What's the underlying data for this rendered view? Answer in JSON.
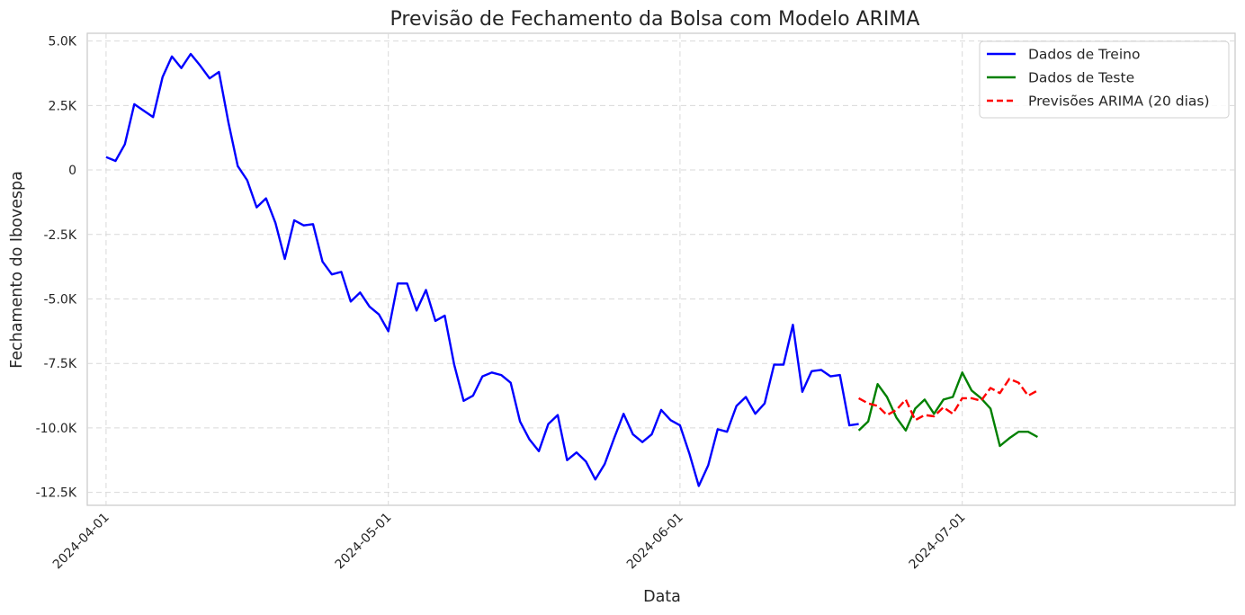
{
  "chart_data": {
    "type": "line",
    "title": "Previsão de Fechamento da Bolsa com Modelo ARIMA",
    "xlabel": "Data",
    "ylabel": "Fechamento do Ibovespa",
    "x_start": "2024-04-01",
    "xlim": [
      "2024-03-30",
      "2024-07-30"
    ],
    "ylim": [
      -13000,
      5300
    ],
    "x_ticks": [
      "2024-04-01",
      "2024-05-01",
      "2024-06-01",
      "2024-07-01"
    ],
    "y_ticks": [
      5000,
      2500,
      0,
      -2500,
      -5000,
      -7500,
      -10000,
      -12500
    ],
    "y_tick_labels": [
      "5.0K",
      "2.5K",
      "0",
      "-2.5K",
      "-5.0K",
      "-7.5K",
      "-10.0K",
      "-12.5K"
    ],
    "grid": true,
    "legend_position": "top-right",
    "series": [
      {
        "name": "Dados de Treino",
        "color": "#0000ff",
        "style": "solid",
        "x": [
          "2024-04-01",
          "2024-04-02",
          "2024-04-03",
          "2024-04-04",
          "2024-04-05",
          "2024-04-06",
          "2024-04-07",
          "2024-04-08",
          "2024-04-09",
          "2024-04-10",
          "2024-04-11",
          "2024-04-12",
          "2024-04-13",
          "2024-04-14",
          "2024-04-15",
          "2024-04-16",
          "2024-04-17",
          "2024-04-18",
          "2024-04-19",
          "2024-04-20",
          "2024-04-21",
          "2024-04-22",
          "2024-04-23",
          "2024-04-24",
          "2024-04-25",
          "2024-04-26",
          "2024-04-27",
          "2024-04-28",
          "2024-04-29",
          "2024-04-30",
          "2024-05-01",
          "2024-05-02",
          "2024-05-03",
          "2024-05-04",
          "2024-05-05",
          "2024-05-06",
          "2024-05-07",
          "2024-05-08",
          "2024-05-09",
          "2024-05-10",
          "2024-05-11",
          "2024-05-12",
          "2024-05-13",
          "2024-05-14",
          "2024-05-15",
          "2024-05-16",
          "2024-05-17",
          "2024-05-18",
          "2024-05-19",
          "2024-05-20",
          "2024-05-21",
          "2024-05-22",
          "2024-05-23",
          "2024-05-24",
          "2024-05-25",
          "2024-05-26",
          "2024-05-27",
          "2024-05-28",
          "2024-05-29",
          "2024-05-30",
          "2024-05-31",
          "2024-06-01",
          "2024-06-02",
          "2024-06-03",
          "2024-06-04",
          "2024-06-05",
          "2024-06-06",
          "2024-06-07",
          "2024-06-08",
          "2024-06-09",
          "2024-06-10",
          "2024-06-11",
          "2024-06-12",
          "2024-06-13",
          "2024-06-14",
          "2024-06-15",
          "2024-06-16",
          "2024-06-17",
          "2024-06-18",
          "2024-06-19",
          "2024-06-20"
        ],
        "values": [
          500,
          350,
          1000,
          2550,
          2300,
          2050,
          3600,
          4400,
          3950,
          4500,
          4050,
          3550,
          3800,
          1850,
          150,
          -400,
          -1450,
          -1100,
          -2050,
          -3450,
          -1950,
          -2150,
          -2100,
          -3550,
          -4050,
          -3950,
          -5100,
          -4750,
          -5300,
          -5600,
          -6250,
          -4400,
          -4400,
          -5450,
          -4650,
          -5850,
          -5650,
          -7550,
          -8950,
          -8750,
          -8000,
          -7850,
          -7950,
          -8250,
          -9750,
          -10450,
          -10900,
          -9850,
          -9500,
          -11250,
          -10950,
          -11300,
          -12000,
          -11400,
          -10400,
          -9450,
          -10250,
          -10550,
          -10250,
          -9300,
          -9700,
          -9900,
          -11000,
          -12250,
          -11450,
          -10050,
          -10150,
          -9150,
          -8800,
          -9450,
          -9050,
          -7550,
          -7550,
          -6000,
          -8600,
          -7800,
          -7750,
          -8000,
          -7950,
          -9900,
          -9850
        ]
      },
      {
        "name": "Dados de Teste",
        "color": "#008000",
        "style": "solid",
        "x": [
          "2024-06-20",
          "2024-06-21",
          "2024-06-22",
          "2024-06-23",
          "2024-06-24",
          "2024-06-25",
          "2024-06-26",
          "2024-06-27",
          "2024-06-28",
          "2024-06-29",
          "2024-06-30",
          "2024-07-01",
          "2024-07-02",
          "2024-07-03",
          "2024-07-04",
          "2024-07-05",
          "2024-07-06",
          "2024-07-07",
          "2024-07-08",
          "2024-07-09"
        ],
        "values": [
          -10100,
          -9750,
          -8300,
          -8800,
          -9600,
          -10100,
          -9250,
          -8900,
          -9450,
          -8900,
          -8800,
          -7850,
          -8550,
          -8850,
          -9250,
          -10700,
          -10400,
          -10150,
          -10150,
          -10350
        ]
      },
      {
        "name": "Previsões ARIMA (20 dias)",
        "color": "#ff0000",
        "style": "dashed",
        "x": [
          "2024-06-20",
          "2024-06-21",
          "2024-06-22",
          "2024-06-23",
          "2024-06-24",
          "2024-06-25",
          "2024-06-26",
          "2024-06-27",
          "2024-06-28",
          "2024-06-29",
          "2024-06-30",
          "2024-07-01",
          "2024-07-02",
          "2024-07-03",
          "2024-07-04",
          "2024-07-05",
          "2024-07-06",
          "2024-07-07",
          "2024-07-08",
          "2024-07-09"
        ],
        "values": [
          -8850,
          -9050,
          -9150,
          -9500,
          -9300,
          -8900,
          -9700,
          -9500,
          -9550,
          -9200,
          -9450,
          -8850,
          -8850,
          -8950,
          -8450,
          -8650,
          -8100,
          -8250,
          -8750,
          -8550
        ]
      }
    ]
  }
}
